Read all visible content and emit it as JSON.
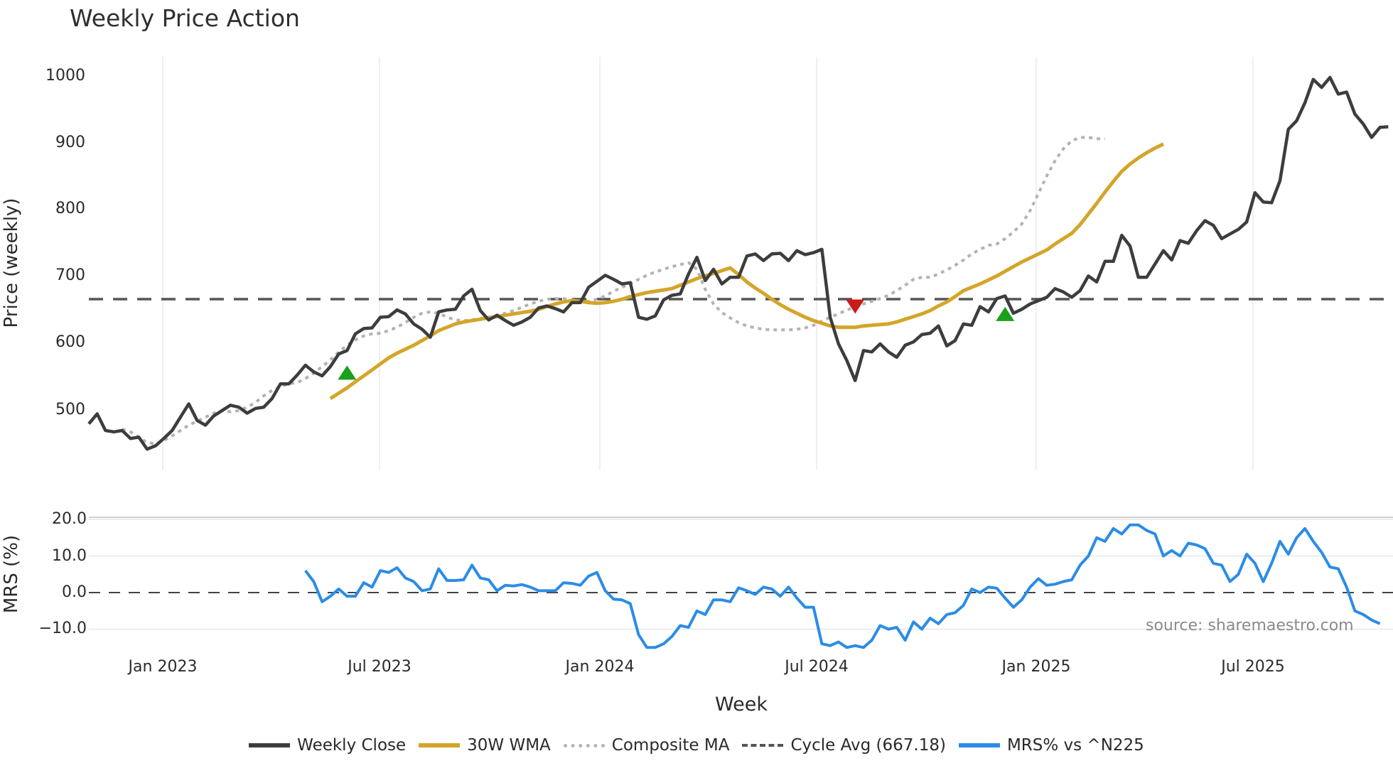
{
  "header": {
    "title": "Weekly Price Action"
  },
  "axes": {
    "price_ylabel": "Price (weekly)",
    "mrs_ylabel": "MRS (%)",
    "xlabel": "Week",
    "price_ticks": [
      "1000",
      "900",
      "800",
      "700",
      "600",
      "500"
    ],
    "mrs_ticks": [
      "20.0",
      "10.0",
      "0.0",
      "−10.0"
    ],
    "x_ticks": [
      "Jan 2023",
      "Jul 2023",
      "Jan 2024",
      "Jul 2024",
      "Jan 2025",
      "Jul 2025"
    ]
  },
  "source": "source: sharemaestro.com",
  "legend": [
    {
      "label": "Weekly Close",
      "color": "#3d3d3d",
      "style": "solid"
    },
    {
      "label": "30W WMA",
      "color": "#d4a52a",
      "style": "solid"
    },
    {
      "label": "Composite MA",
      "color": "#b3b3b3",
      "style": "dotted"
    },
    {
      "label": "Cycle Avg (667.18)",
      "color": "#555555",
      "style": "dashed"
    },
    {
      "label": "MRS% vs ^N225",
      "color": "#2b8ce6",
      "style": "solid"
    }
  ],
  "chart_data": {
    "type": "line",
    "title": "Weekly Price Action",
    "xlabel": "Week",
    "ylabel": "Price (weekly)",
    "ylim": [
      410,
      1030
    ],
    "x_tick_labels": [
      "Jan 2023",
      "Jul 2023",
      "Jan 2024",
      "Jul 2024",
      "Jan 2025",
      "Jul 2025"
    ],
    "cycle_avg": 667.18,
    "series": [
      {
        "name": "Weekly Close",
        "start_week": 0,
        "values": [
          480,
          495,
          470,
          468,
          470,
          458,
          460,
          442,
          447,
          458,
          470,
          490,
          510,
          485,
          478,
          492,
          500,
          508,
          505,
          496,
          503,
          505,
          518,
          540,
          540,
          553,
          568,
          558,
          552,
          566,
          585,
          590,
          615,
          623,
          624,
          640,
          641,
          651,
          645,
          630,
          622,
          610,
          648,
          651,
          652,
          672,
          682,
          650,
          636,
          643,
          635,
          628,
          633,
          640,
          654,
          657,
          653,
          648,
          662,
          662,
          685,
          694,
          703,
          697,
          690,
          692,
          640,
          637,
          642,
          666,
          673,
          675,
          705,
          730,
          695,
          712,
          690,
          700,
          700,
          732,
          735,
          725,
          735,
          736,
          725,
          740,
          734,
          737,
          742,
          640,
          600,
          575,
          545,
          590,
          588,
          600,
          588,
          580,
          598,
          603,
          614,
          616,
          627,
          597,
          605,
          630,
          628,
          656,
          648,
          668,
          672,
          646,
          652,
          660,
          665,
          670,
          683,
          678,
          670,
          680,
          702,
          693,
          724,
          724,
          763,
          747,
          700,
          700,
          720,
          740,
          726,
          755,
          751,
          770,
          785,
          778,
          758,
          765,
          772,
          783,
          827,
          813,
          812,
          845,
          922,
          935,
          962,
          997,
          985,
          1000,
          975,
          978,
          945,
          930,
          910,
          925,
          926
        ]
      },
      {
        "name": "30W WMA",
        "start_week": 29,
        "values": [
          518,
          526,
          534,
          543,
          552,
          561,
          570,
          579,
          586,
          592,
          598,
          605,
          612,
          620,
          625,
          630,
          633,
          635,
          637,
          639,
          641,
          643,
          645,
          647,
          649,
          652,
          656,
          660,
          663,
          665,
          664,
          662,
          661,
          662,
          664,
          667,
          671,
          674,
          677,
          679,
          681,
          683,
          688,
          693,
          698,
          702,
          706,
          710,
          714,
          704,
          693,
          684,
          676,
          667,
          659,
          652,
          646,
          640,
          635,
          631,
          627,
          625,
          625,
          625,
          627,
          628,
          629,
          630,
          633,
          637,
          641,
          645,
          650,
          657,
          663,
          671,
          680,
          685,
          690,
          696,
          702,
          709,
          716,
          723,
          729,
          735,
          741,
          750,
          758,
          766,
          779,
          795,
          811,
          828,
          844,
          859,
          870,
          879,
          887,
          894,
          900
        ]
      },
      {
        "name": "Composite MA",
        "start_week": 4,
        "values": [
          472,
          468,
          460,
          452,
          450,
          455,
          462,
          470,
          478,
          484,
          490,
          496,
          500,
          498,
          500,
          505,
          512,
          522,
          530,
          536,
          540,
          542,
          548,
          556,
          566,
          576,
          588,
          598,
          606,
          612,
          615,
          616,
          620,
          625,
          632,
          640,
          646,
          648,
          646,
          640,
          636,
          635,
          636,
          638,
          640,
          643,
          646,
          650,
          655,
          660,
          664,
          667,
          668,
          668,
          666,
          664,
          664,
          667,
          672,
          679,
          685,
          690,
          697,
          703,
          708,
          712,
          716,
          719,
          722,
          712,
          682,
          660,
          647,
          639,
          632,
          627,
          624,
          622,
          621,
          621,
          621,
          622,
          624,
          628,
          634,
          640,
          645,
          651,
          655,
          660,
          664,
          668,
          673,
          680,
          688,
          697,
          700,
          700,
          705,
          711,
          718,
          726,
          735,
          742,
          748,
          750,
          758,
          768,
          780,
          800,
          826,
          852,
          875,
          893,
          905,
          910,
          910,
          908,
          908
        ]
      },
      {
        "name": "MRS% vs ^N225",
        "start_week": 26,
        "values": [
          6,
          3,
          -2.5,
          -1,
          1,
          -1,
          -1,
          2.7,
          1.5,
          6,
          5.5,
          6.8,
          4,
          3,
          0.5,
          1,
          6.5,
          3.3,
          3.3,
          3.5,
          7.5,
          4,
          3.5,
          0.5,
          2,
          1.8,
          2.2,
          1.5,
          0.5,
          0.5,
          0.5,
          2.7,
          2.5,
          2,
          4.5,
          5.5,
          0.5,
          -1.8,
          -2,
          -3,
          -11.5,
          -15,
          -15,
          -14,
          -12,
          -9,
          -9.5,
          -5,
          -6,
          -2,
          -2,
          -2.5,
          1.3,
          0.5,
          -0.5,
          1.5,
          1,
          -1,
          1.5,
          -1.5,
          -4,
          -4,
          -14,
          -14.5,
          -13.5,
          -15,
          -14.5,
          -15,
          -13,
          -9,
          -10,
          -9.5,
          -13,
          -8,
          -10,
          -7,
          -8.5,
          -6,
          -5.5,
          -3.5,
          1,
          0,
          1.5,
          1.2,
          -1.5,
          -4,
          -2,
          1.5,
          3.8,
          2,
          2.3,
          3,
          3.5,
          7.5,
          10,
          15,
          14,
          17.5,
          16,
          18.5,
          18.5,
          17,
          16,
          10,
          11.5,
          10,
          13.5,
          13,
          12,
          8,
          7.5,
          3,
          5,
          10.5,
          8,
          3,
          8,
          14,
          10.5,
          15,
          17.5,
          14,
          11,
          7,
          6.5,
          1.5,
          -5,
          -6,
          -7.5,
          -8.5
        ]
      }
    ],
    "markers": [
      {
        "type": "buy",
        "week": 31,
        "value": 557,
        "color": "#1aa01a"
      },
      {
        "type": "sell",
        "week": 92,
        "value": 656,
        "color": "#cc1a1a"
      },
      {
        "type": "buy",
        "week": 110,
        "value": 645,
        "color": "#1aa01a"
      }
    ],
    "mrs_ylim": [
      -16,
      22
    ]
  }
}
